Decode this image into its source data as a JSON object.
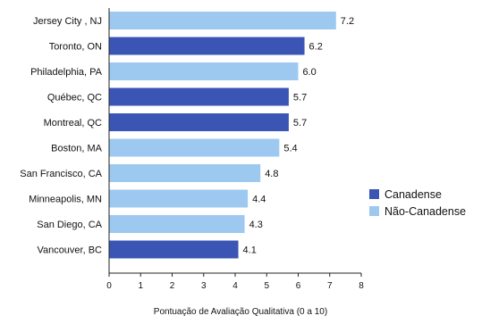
{
  "chart_data": {
    "type": "bar",
    "orientation": "horizontal",
    "categories": [
      "Jersey City , NJ",
      "Toronto, ON",
      "Philadelphia, PA",
      "Québec, QC",
      "Montreal, QC",
      "Boston, MA",
      "San Francisco, CA",
      "Minneapolis, MN",
      "San Diego, CA",
      "Vancouver, BC"
    ],
    "values": [
      7.2,
      6.2,
      6.0,
      5.7,
      5.7,
      5.4,
      4.8,
      4.4,
      4.3,
      4.1
    ],
    "value_labels": [
      "7.2",
      "6.2",
      "6.0",
      "5.7",
      "5.7",
      "5.4",
      "4.8",
      "4.4",
      "4.3",
      "4.1"
    ],
    "groups": [
      "Não-Canadense",
      "Canadense",
      "Não-Canadense",
      "Canadense",
      "Canadense",
      "Não-Canadense",
      "Não-Canadense",
      "Não-Canadense",
      "Não-Canadense",
      "Canadense"
    ],
    "legend": [
      {
        "name": "Canadense",
        "color": "#3a55b4"
      },
      {
        "name": "Não-Canadense",
        "color": "#9dc9f0"
      }
    ],
    "legend_position": "right",
    "xlabel": "Pontuação de Avaliação Qualitativa (0 a 10)",
    "xlim": [
      0,
      8
    ],
    "xticks": [
      "0",
      "1",
      "2",
      "3",
      "4",
      "5",
      "6",
      "7",
      "8"
    ],
    "grid": false,
    "axis_color": "#222222"
  }
}
